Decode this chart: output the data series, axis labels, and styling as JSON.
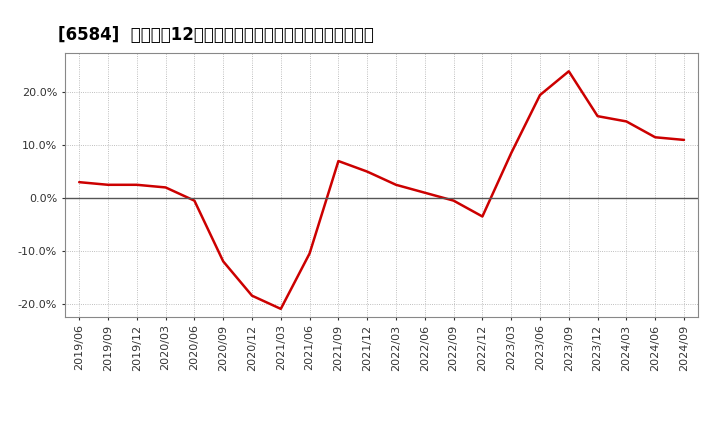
{
  "title": "[6584]  売上高の12か月移動合計の対前年同期増減率の推移",
  "line_color": "#cc0000",
  "background_color": "#ffffff",
  "plot_bg_color": "#ffffff",
  "zero_line_color": "#555555",
  "grid_color": "#aaaaaa",
  "ylim": [
    -0.225,
    0.275
  ],
  "yticks": [
    -0.2,
    -0.1,
    0.0,
    0.1,
    0.2
  ],
  "dates": [
    "2019/06",
    "2019/09",
    "2019/12",
    "2020/03",
    "2020/06",
    "2020/09",
    "2020/12",
    "2021/03",
    "2021/06",
    "2021/09",
    "2021/12",
    "2022/03",
    "2022/06",
    "2022/09",
    "2022/12",
    "2023/03",
    "2023/06",
    "2023/09",
    "2023/12",
    "2024/03",
    "2024/06",
    "2024/09"
  ],
  "values": [
    0.03,
    0.025,
    0.025,
    0.02,
    -0.005,
    -0.12,
    -0.185,
    -0.21,
    -0.105,
    0.07,
    0.05,
    0.025,
    0.01,
    -0.005,
    -0.035,
    0.085,
    0.195,
    0.24,
    0.155,
    0.145,
    0.115,
    0.11
  ],
  "title_fontsize": 12,
  "tick_fontsize": 8,
  "linewidth": 1.8
}
